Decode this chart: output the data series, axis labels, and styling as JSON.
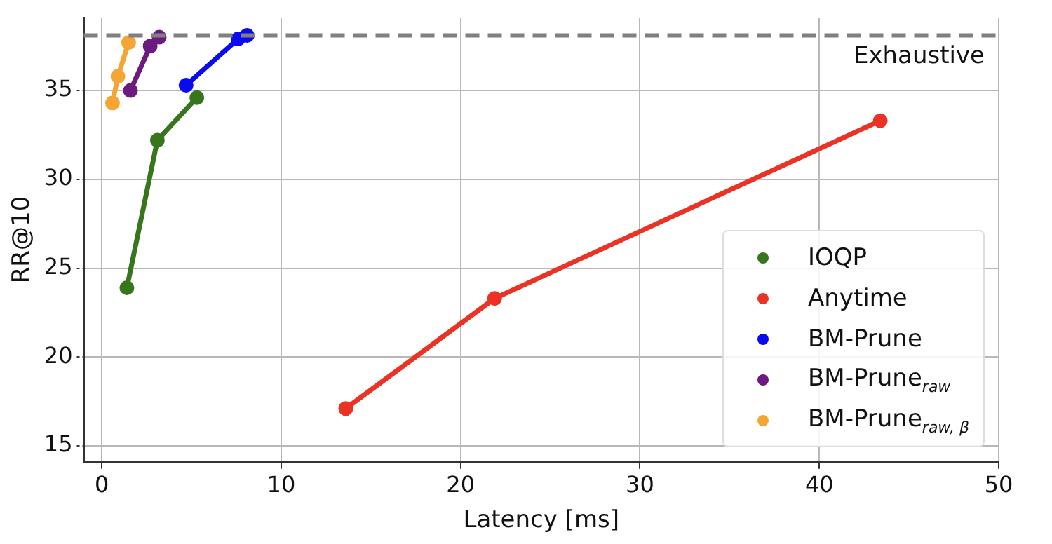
{
  "chart_data": {
    "type": "line",
    "xlabel": "Latency [ms]",
    "ylabel": "RR@10",
    "xlim": [
      -1,
      50
    ],
    "xticks": [
      0,
      10,
      20,
      30,
      40,
      50
    ],
    "ylim": [
      14.1,
      39.1
    ],
    "yticks": [
      15,
      20,
      25,
      30,
      35
    ],
    "grid": true,
    "legend": "bottom right",
    "marker": "circle",
    "line_style": "solid",
    "ref_lines": [
      {
        "axis": "y",
        "value": 38.1,
        "label": "Exhaustive",
        "color": "#808080",
        "line_style": "dashed"
      }
    ],
    "series": [
      {
        "name": "IOQP",
        "color": "#38761d",
        "x": [
          1.4,
          3.1,
          5.3
        ],
        "values": [
          23.9,
          32.2,
          34.6
        ]
      },
      {
        "name": "Anytime",
        "color": "#ea3325",
        "x": [
          13.6,
          21.9,
          43.4
        ],
        "values": [
          17.1,
          23.3,
          33.3
        ]
      },
      {
        "name": "BM-Prune",
        "color": "#0a0af0",
        "x": [
          4.7,
          7.6,
          8.1
        ],
        "values": [
          35.3,
          37.9,
          38.1
        ]
      },
      {
        "name": "BM-Prune$_{raw}$",
        "color": "#6c1a80",
        "x": [
          1.6,
          2.7,
          3.2
        ],
        "values": [
          35.0,
          37.5,
          38.0
        ]
      },
      {
        "name": "BM-Prune$_{raw, β}$",
        "color": "#f4a534",
        "x": [
          0.6,
          0.9,
          1.5
        ],
        "values": [
          34.3,
          35.8,
          37.7
        ]
      }
    ]
  }
}
